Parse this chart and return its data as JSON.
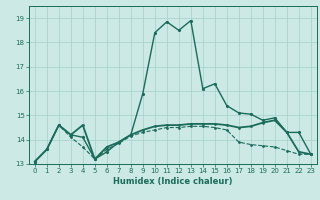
{
  "xlabel": "Humidex (Indice chaleur)",
  "ylabel": "",
  "xlim": [
    -0.5,
    23.5
  ],
  "ylim": [
    13,
    19.5
  ],
  "yticks": [
    13,
    14,
    15,
    16,
    17,
    18,
    19
  ],
  "xticks": [
    0,
    1,
    2,
    3,
    4,
    5,
    6,
    7,
    8,
    9,
    10,
    11,
    12,
    13,
    14,
    15,
    16,
    17,
    18,
    19,
    20,
    21,
    22,
    23
  ],
  "background_color": "#cce9e5",
  "grid_color": "#aad4ce",
  "line_color": "#1a6b5a",
  "line1_x": [
    0,
    1,
    2,
    3,
    4,
    5,
    6,
    7,
    8,
    9,
    10,
    11,
    12,
    13,
    14,
    15,
    16,
    17,
    18,
    19,
    20,
    21,
    22,
    23
  ],
  "line1_y": [
    13.1,
    13.6,
    14.6,
    14.2,
    14.6,
    13.2,
    13.7,
    13.9,
    14.2,
    14.4,
    14.55,
    14.6,
    14.6,
    14.65,
    14.65,
    14.65,
    14.6,
    14.5,
    14.55,
    14.7,
    14.8,
    14.3,
    13.5,
    13.4
  ],
  "line2_x": [
    0,
    1,
    2,
    3,
    4,
    5,
    6,
    7,
    8,
    9,
    10,
    11,
    12,
    13,
    14,
    15,
    16,
    17,
    18,
    19,
    20,
    21,
    22,
    23
  ],
  "line2_y": [
    13.1,
    13.6,
    14.6,
    14.2,
    14.1,
    13.2,
    13.5,
    13.9,
    14.2,
    15.9,
    18.4,
    18.85,
    18.5,
    18.9,
    16.1,
    16.3,
    15.4,
    15.1,
    15.05,
    14.8,
    14.9,
    14.3,
    14.3,
    13.4
  ],
  "line3_x": [
    0,
    1,
    2,
    3,
    4,
    5,
    6,
    7,
    8,
    9,
    10,
    11,
    12,
    13,
    14,
    15,
    16,
    17,
    18,
    19,
    20,
    21,
    22,
    23
  ],
  "line3_y": [
    13.1,
    13.6,
    14.6,
    14.1,
    13.7,
    13.2,
    13.6,
    13.85,
    14.15,
    14.3,
    14.4,
    14.5,
    14.5,
    14.55,
    14.55,
    14.5,
    14.4,
    13.9,
    13.8,
    13.75,
    13.7,
    13.55,
    13.4,
    13.4
  ]
}
